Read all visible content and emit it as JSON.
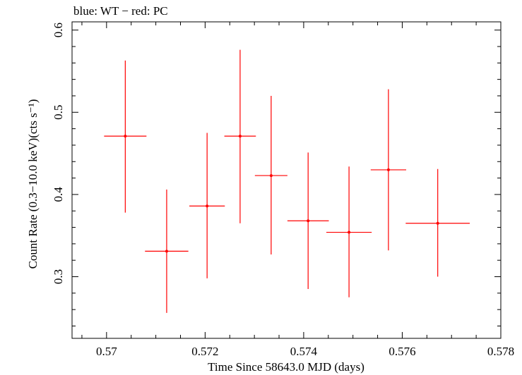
{
  "chart_data": {
    "type": "scatter",
    "title": "blue: WT − red: PC",
    "xlabel": "Time Since 58643.0 MJD (days)",
    "ylabel": "Count Rate (0.3−10.0 keV)(cts s⁻¹)",
    "xlim": [
      0.5693,
      0.578
    ],
    "ylim": [
      0.225,
      0.61
    ],
    "x_ticks": [
      0.57,
      0.572,
      0.574,
      0.576,
      0.578
    ],
    "x_tick_labels": [
      "0.57",
      "0.572",
      "0.574",
      "0.576",
      "0.578"
    ],
    "y_ticks": [
      0.3,
      0.4,
      0.5,
      0.6
    ],
    "y_tick_labels": [
      "0.3",
      "0.4",
      "0.5",
      "0.6"
    ],
    "grid": false,
    "series": [
      {
        "name": "PC",
        "color": "#ff0000",
        "points": [
          {
            "x": 0.57038,
            "x_err": 0.00043,
            "y": 0.471,
            "y_err_low": 0.093,
            "y_err_high": 0.092
          },
          {
            "x": 0.57122,
            "x_err": 0.00044,
            "y": 0.331,
            "y_err_low": 0.075,
            "y_err_high": 0.075
          },
          {
            "x": 0.57204,
            "x_err": 0.00036,
            "y": 0.386,
            "y_err_low": 0.088,
            "y_err_high": 0.089
          },
          {
            "x": 0.57271,
            "x_err": 0.00032,
            "y": 0.471,
            "y_err_low": 0.106,
            "y_err_high": 0.105
          },
          {
            "x": 0.57334,
            "x_err": 0.00033,
            "y": 0.423,
            "y_err_low": 0.096,
            "y_err_high": 0.097
          },
          {
            "x": 0.57409,
            "x_err": 0.00042,
            "y": 0.368,
            "y_err_low": 0.083,
            "y_err_high": 0.083
          },
          {
            "x": 0.57492,
            "x_err": 0.00046,
            "y": 0.354,
            "y_err_low": 0.079,
            "y_err_high": 0.08
          },
          {
            "x": 0.57572,
            "x_err": 0.00036,
            "y": 0.43,
            "y_err_low": 0.098,
            "y_err_high": 0.098
          },
          {
            "x": 0.57672,
            "x_err": 0.00065,
            "y": 0.365,
            "y_err_low": 0.065,
            "y_err_high": 0.066
          }
        ]
      }
    ]
  }
}
